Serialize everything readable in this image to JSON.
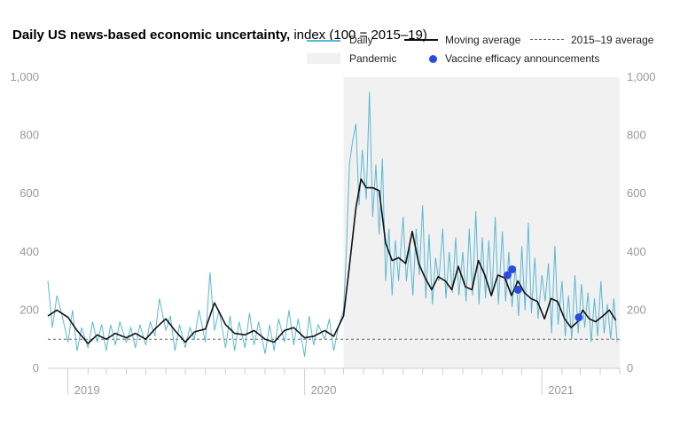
{
  "title": {
    "bold": "Daily US news-based economic uncertainty,",
    "normal": " index (100 = 2015–19)"
  },
  "legend": {
    "daily": "Daily",
    "moving_average": "Moving average",
    "baseline": "2015–19 average",
    "pandemic": "Pandemic",
    "vaccine": "Vaccine efficacy announcements"
  },
  "colors": {
    "daily": "#5bb8d4",
    "moving_average": "#111111",
    "baseline": "#666666",
    "pandemic": "#f1f1f1",
    "vaccine": "#2b4be0",
    "axis_text": "#999999"
  },
  "chart_data": {
    "type": "line",
    "x_unit": "date",
    "xlim": [
      "2018-12-01",
      "2021-05-01"
    ],
    "ylim": [
      0,
      1000
    ],
    "y_ticks": [
      0,
      200,
      400,
      600,
      800,
      1000
    ],
    "y_tick_labels": [
      "0",
      "200",
      "400",
      "600",
      "800",
      "1,000"
    ],
    "x_tick_labels": [
      {
        "label": "2019",
        "date": "2019-01-01"
      },
      {
        "label": "2020",
        "date": "2020-01-01"
      },
      {
        "label": "2021",
        "date": "2021-01-01"
      }
    ],
    "grid": false,
    "pandemic_shading": {
      "start": "2020-03-01",
      "end": "2021-05-01"
    },
    "baseline_value": 100,
    "series": [
      {
        "name": "Moving average",
        "kind": "line",
        "x": [
          "2018-12-01",
          "2018-12-15",
          "2019-01-01",
          "2019-01-15",
          "2019-02-01",
          "2019-02-15",
          "2019-03-01",
          "2019-03-15",
          "2019-04-01",
          "2019-04-15",
          "2019-05-01",
          "2019-05-15",
          "2019-06-01",
          "2019-06-15",
          "2019-07-01",
          "2019-07-15",
          "2019-08-01",
          "2019-08-15",
          "2019-09-01",
          "2019-09-15",
          "2019-10-01",
          "2019-10-15",
          "2019-11-01",
          "2019-11-15",
          "2019-12-01",
          "2019-12-15",
          "2020-01-01",
          "2020-01-15",
          "2020-02-01",
          "2020-02-15",
          "2020-03-01",
          "2020-03-10",
          "2020-03-20",
          "2020-03-28",
          "2020-04-05",
          "2020-04-15",
          "2020-04-25",
          "2020-05-05",
          "2020-05-15",
          "2020-05-25",
          "2020-06-05",
          "2020-06-15",
          "2020-06-25",
          "2020-07-05",
          "2020-07-15",
          "2020-07-25",
          "2020-08-05",
          "2020-08-15",
          "2020-08-25",
          "2020-09-05",
          "2020-09-15",
          "2020-09-25",
          "2020-10-05",
          "2020-10-15",
          "2020-10-25",
          "2020-11-05",
          "2020-11-15",
          "2020-11-25",
          "2020-12-05",
          "2020-12-15",
          "2020-12-25",
          "2021-01-05",
          "2021-01-15",
          "2021-01-25",
          "2021-02-05",
          "2021-02-15",
          "2021-02-25",
          "2021-03-05",
          "2021-03-15",
          "2021-03-25",
          "2021-04-05",
          "2021-04-15",
          "2021-04-25"
        ],
        "y": [
          180,
          200,
          175,
          130,
          85,
          115,
          100,
          120,
          105,
          120,
          100,
          135,
          170,
          130,
          90,
          125,
          135,
          225,
          150,
          120,
          115,
          130,
          100,
          90,
          130,
          140,
          105,
          110,
          130,
          110,
          180,
          350,
          550,
          650,
          620,
          620,
          610,
          430,
          370,
          380,
          360,
          470,
          360,
          310,
          270,
          315,
          300,
          270,
          350,
          280,
          270,
          370,
          320,
          250,
          320,
          310,
          250,
          300,
          260,
          240,
          230,
          170,
          240,
          230,
          170,
          140,
          160,
          200,
          170,
          160,
          180,
          200,
          165
        ]
      },
      {
        "name": "Daily",
        "kind": "line",
        "x": [
          "2018-12-01",
          "2018-12-08",
          "2018-12-15",
          "2018-12-22",
          "2019-01-01",
          "2019-01-08",
          "2019-01-15",
          "2019-01-22",
          "2019-02-01",
          "2019-02-08",
          "2019-02-15",
          "2019-02-22",
          "2019-03-01",
          "2019-03-08",
          "2019-03-15",
          "2019-03-22",
          "2019-04-01",
          "2019-04-08",
          "2019-04-15",
          "2019-04-22",
          "2019-05-01",
          "2019-05-08",
          "2019-05-15",
          "2019-05-22",
          "2019-06-01",
          "2019-06-08",
          "2019-06-15",
          "2019-06-22",
          "2019-07-01",
          "2019-07-08",
          "2019-07-15",
          "2019-07-22",
          "2019-08-01",
          "2019-08-08",
          "2019-08-15",
          "2019-08-22",
          "2019-09-01",
          "2019-09-08",
          "2019-09-15",
          "2019-09-22",
          "2019-10-01",
          "2019-10-08",
          "2019-10-15",
          "2019-10-22",
          "2019-11-01",
          "2019-11-08",
          "2019-11-15",
          "2019-11-22",
          "2019-12-01",
          "2019-12-08",
          "2019-12-15",
          "2019-12-22",
          "2020-01-01",
          "2020-01-08",
          "2020-01-15",
          "2020-01-22",
          "2020-02-01",
          "2020-02-08",
          "2020-02-15",
          "2020-02-22",
          "2020-03-01",
          "2020-03-05",
          "2020-03-10",
          "2020-03-15",
          "2020-03-20",
          "2020-03-25",
          "2020-03-30",
          "2020-04-05",
          "2020-04-10",
          "2020-04-15",
          "2020-04-20",
          "2020-04-25",
          "2020-04-30",
          "2020-05-05",
          "2020-05-10",
          "2020-05-15",
          "2020-05-20",
          "2020-05-25",
          "2020-06-01",
          "2020-06-06",
          "2020-06-11",
          "2020-06-16",
          "2020-06-21",
          "2020-06-26",
          "2020-07-01",
          "2020-07-06",
          "2020-07-11",
          "2020-07-16",
          "2020-07-21",
          "2020-07-26",
          "2020-08-01",
          "2020-08-06",
          "2020-08-11",
          "2020-08-16",
          "2020-08-21",
          "2020-08-26",
          "2020-09-01",
          "2020-09-06",
          "2020-09-11",
          "2020-09-16",
          "2020-09-21",
          "2020-09-26",
          "2020-10-01",
          "2020-10-06",
          "2020-10-11",
          "2020-10-16",
          "2020-10-21",
          "2020-10-26",
          "2020-11-01",
          "2020-11-06",
          "2020-11-11",
          "2020-11-16",
          "2020-11-21",
          "2020-11-26",
          "2020-12-01",
          "2020-12-06",
          "2020-12-11",
          "2020-12-16",
          "2020-12-21",
          "2020-12-26",
          "2021-01-01",
          "2021-01-06",
          "2021-01-11",
          "2021-01-16",
          "2021-01-21",
          "2021-01-26",
          "2021-02-01",
          "2021-02-06",
          "2021-02-11",
          "2021-02-16",
          "2021-02-21",
          "2021-02-26",
          "2021-03-03",
          "2021-03-08",
          "2021-03-13",
          "2021-03-18",
          "2021-03-23",
          "2021-03-28",
          "2021-04-02",
          "2021-04-07",
          "2021-04-12",
          "2021-04-17",
          "2021-04-22",
          "2021-04-27"
        ],
        "y": [
          300,
          140,
          250,
          190,
          90,
          200,
          60,
          140,
          70,
          160,
          90,
          150,
          60,
          150,
          80,
          160,
          90,
          140,
          70,
          150,
          80,
          160,
          110,
          240,
          130,
          180,
          60,
          150,
          70,
          140,
          100,
          200,
          90,
          330,
          130,
          200,
          70,
          180,
          60,
          160,
          70,
          190,
          80,
          160,
          50,
          150,
          60,
          170,
          90,
          200,
          80,
          170,
          40,
          180,
          80,
          150,
          100,
          170,
          60,
          140,
          200,
          380,
          700,
          780,
          840,
          560,
          750,
          580,
          950,
          520,
          700,
          460,
          720,
          300,
          480,
          250,
          440,
          300,
          520,
          300,
          420,
          250,
          480,
          320,
          560,
          240,
          460,
          220,
          380,
          300,
          480,
          240,
          400,
          260,
          450,
          250,
          400,
          230,
          480,
          250,
          540,
          220,
          450,
          240,
          440,
          250,
          520,
          220,
          470,
          230,
          400,
          210,
          350,
          180,
          420,
          200,
          500,
          190,
          380,
          170,
          320,
          230,
          360,
          120,
          420,
          150,
          300,
          110,
          250,
          100,
          320,
          120,
          290,
          140,
          260,
          90,
          240,
          110,
          300,
          120,
          220,
          100,
          240,
          90
        ]
      }
    ],
    "vaccine_announcements": [
      {
        "x": "2020-11-09",
        "y": 320
      },
      {
        "x": "2020-11-16",
        "y": 340
      },
      {
        "x": "2020-11-25",
        "y": 270
      },
      {
        "x": "2021-02-27",
        "y": 175
      }
    ]
  }
}
